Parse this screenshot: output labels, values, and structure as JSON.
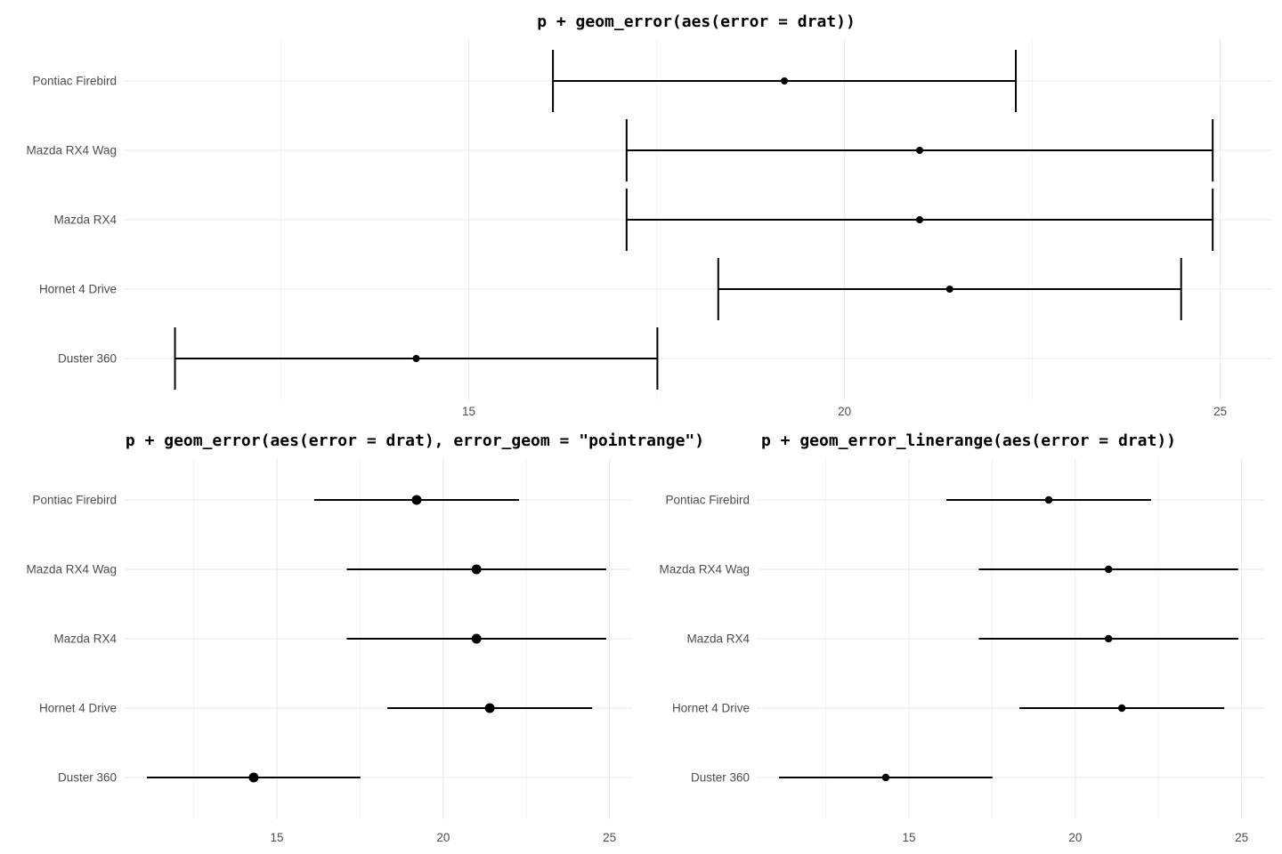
{
  "colors": {
    "geom": "#000000",
    "axis_text": "#4d4d4d",
    "grid_major": "#e9e9e9",
    "grid_minor": "#f4f4f4",
    "background": "#ffffff"
  },
  "chart_data": [
    {
      "id": "errorbar-plot",
      "type": "errorbar",
      "title": "p + geom_error(aes(error = drat))",
      "categories": [
        "Pontiac Firebird",
        "Mazda RX4 Wag",
        "Mazda RX4",
        "Hornet 4 Drive",
        "Duster 360"
      ],
      "x_center": [
        19.2,
        21.0,
        21.0,
        21.4,
        14.3
      ],
      "error": [
        3.08,
        3.9,
        3.9,
        3.08,
        3.21
      ],
      "x_min": [
        16.12,
        17.1,
        17.1,
        18.32,
        11.09
      ],
      "x_max": [
        22.28,
        24.9,
        24.9,
        24.48,
        17.51
      ],
      "x_ticks": [
        15,
        20,
        25
      ],
      "x_minor_ticks": [
        12.5,
        17.5,
        22.5
      ],
      "xlim": [
        10.42,
        25.68
      ],
      "xlabel": "",
      "ylabel": "",
      "grid": true,
      "legend": false
    },
    {
      "id": "pointrange-plot",
      "type": "pointrange",
      "title": "p + geom_error(aes(error = drat), error_geom = \"pointrange\")",
      "categories": [
        "Pontiac Firebird",
        "Mazda RX4 Wag",
        "Mazda RX4",
        "Hornet 4 Drive",
        "Duster 360"
      ],
      "x_center": [
        19.2,
        21.0,
        21.0,
        21.4,
        14.3
      ],
      "error": [
        3.08,
        3.9,
        3.9,
        3.08,
        3.21
      ],
      "x_min": [
        16.12,
        17.1,
        17.1,
        18.32,
        11.09
      ],
      "x_max": [
        22.28,
        24.9,
        24.9,
        24.48,
        17.51
      ],
      "x_ticks": [
        15,
        20,
        25
      ],
      "x_minor_ticks": [
        12.5,
        17.5,
        22.5
      ],
      "xlim": [
        10.42,
        25.68
      ],
      "xlabel": "",
      "ylabel": "",
      "grid": true,
      "legend": false
    },
    {
      "id": "linerange-plot",
      "type": "linerange",
      "title": "p + geom_error_linerange(aes(error = drat))",
      "categories": [
        "Pontiac Firebird",
        "Mazda RX4 Wag",
        "Mazda RX4",
        "Hornet 4 Drive",
        "Duster 360"
      ],
      "x_center": [
        19.2,
        21.0,
        21.0,
        21.4,
        14.3
      ],
      "error": [
        3.08,
        3.9,
        3.9,
        3.08,
        3.21
      ],
      "x_min": [
        16.12,
        17.1,
        17.1,
        18.32,
        11.09
      ],
      "x_max": [
        22.28,
        24.9,
        24.9,
        24.48,
        17.51
      ],
      "x_ticks": [
        15,
        20,
        25
      ],
      "x_minor_ticks": [
        12.5,
        17.5,
        22.5
      ],
      "xlim": [
        10.42,
        25.68
      ],
      "xlabel": "",
      "ylabel": "",
      "grid": true,
      "legend": false
    }
  ]
}
